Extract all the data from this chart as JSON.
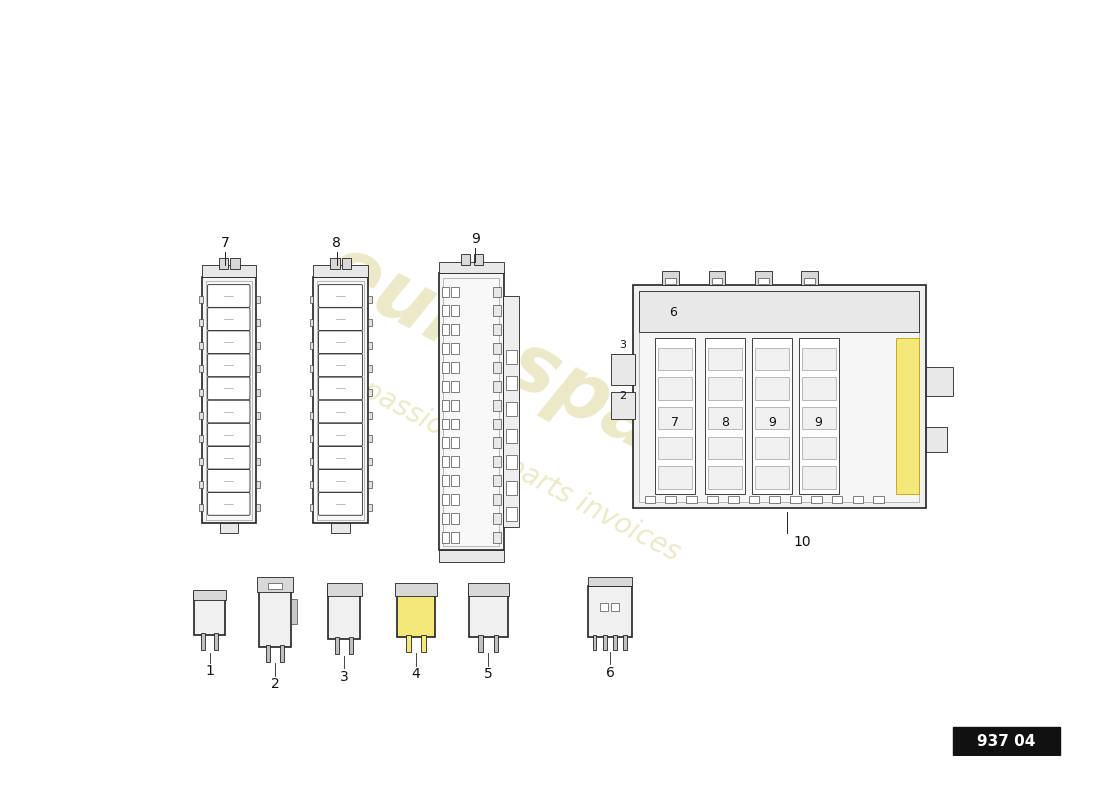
{
  "background_color": "#ffffff",
  "watermark_color": "#c8c060",
  "watermark_alpha": 0.35,
  "part_number_box": "937 04",
  "label_fontsize": 10,
  "small_label_fontsize": 8,
  "label_color": "#111111",
  "line_color": "#222222",
  "line_color_light": "#888888",
  "fuse_fill": "#f0f0f0",
  "fuse_fill_white": "#ffffff",
  "fuse_fill_yellow": "#f5e87a",
  "lw_main": 1.2,
  "lw_detail": 0.6,
  "lw_thin": 0.4,
  "fig_w": 11.0,
  "fig_h": 8.0,
  "dpi": 100,
  "xlim": [
    0,
    11
  ],
  "ylim": [
    0,
    8
  ]
}
